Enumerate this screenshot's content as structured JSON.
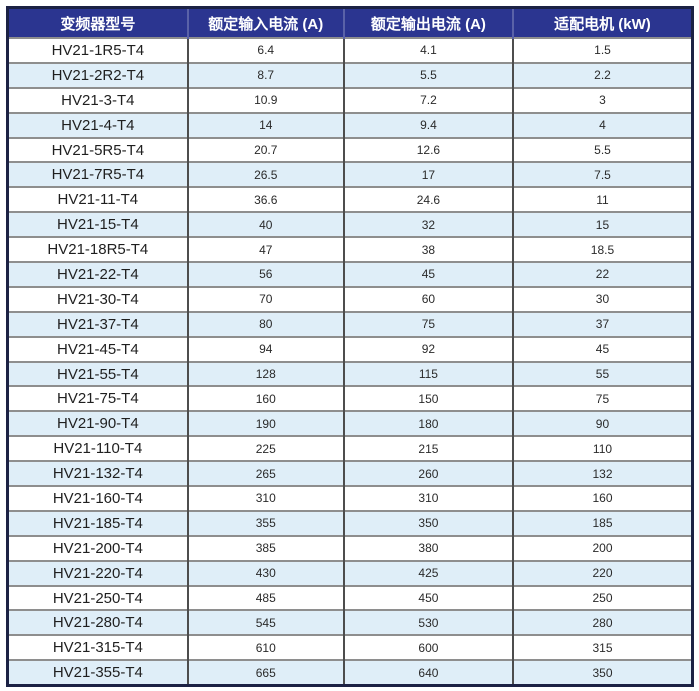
{
  "table": {
    "columns": [
      {
        "label": "变频器型号"
      },
      {
        "label": "额定输入电流 (A)"
      },
      {
        "label": "额定输出电流 (A)"
      },
      {
        "label": "适配电机 (kW)"
      }
    ],
    "rows": [
      {
        "model": "HV21-1R5-T4",
        "input_current": "6.4",
        "output_current": "4.1",
        "motor_kw": "1.5"
      },
      {
        "model": "HV21-2R2-T4",
        "input_current": "8.7",
        "output_current": "5.5",
        "motor_kw": "2.2"
      },
      {
        "model": "HV21-3-T4",
        "input_current": "10.9",
        "output_current": "7.2",
        "motor_kw": "3"
      },
      {
        "model": "HV21-4-T4",
        "input_current": "14",
        "output_current": "9.4",
        "motor_kw": "4"
      },
      {
        "model": "HV21-5R5-T4",
        "input_current": "20.7",
        "output_current": "12.6",
        "motor_kw": "5.5"
      },
      {
        "model": "HV21-7R5-T4",
        "input_current": "26.5",
        "output_current": "17",
        "motor_kw": "7.5"
      },
      {
        "model": "HV21-11-T4",
        "input_current": "36.6",
        "output_current": "24.6",
        "motor_kw": "11"
      },
      {
        "model": "HV21-15-T4",
        "input_current": "40",
        "output_current": "32",
        "motor_kw": "15"
      },
      {
        "model": "HV21-18R5-T4",
        "input_current": "47",
        "output_current": "38",
        "motor_kw": "18.5"
      },
      {
        "model": "HV21-22-T4",
        "input_current": "56",
        "output_current": "45",
        "motor_kw": "22"
      },
      {
        "model": "HV21-30-T4",
        "input_current": "70",
        "output_current": "60",
        "motor_kw": "30"
      },
      {
        "model": "HV21-37-T4",
        "input_current": "80",
        "output_current": "75",
        "motor_kw": "37"
      },
      {
        "model": "HV21-45-T4",
        "input_current": "94",
        "output_current": "92",
        "motor_kw": "45"
      },
      {
        "model": "HV21-55-T4",
        "input_current": "128",
        "output_current": "115",
        "motor_kw": "55"
      },
      {
        "model": "HV21-75-T4",
        "input_current": "160",
        "output_current": "150",
        "motor_kw": "75"
      },
      {
        "model": "HV21-90-T4",
        "input_current": "190",
        "output_current": "180",
        "motor_kw": "90"
      },
      {
        "model": "HV21-110-T4",
        "input_current": "225",
        "output_current": "215",
        "motor_kw": "110"
      },
      {
        "model": "HV21-132-T4",
        "input_current": "265",
        "output_current": "260",
        "motor_kw": "132"
      },
      {
        "model": "HV21-160-T4",
        "input_current": "310",
        "output_current": "310",
        "motor_kw": "160"
      },
      {
        "model": "HV21-185-T4",
        "input_current": "355",
        "output_current": "350",
        "motor_kw": "185"
      },
      {
        "model": "HV21-200-T4",
        "input_current": "385",
        "output_current": "380",
        "motor_kw": "200"
      },
      {
        "model": "HV21-220-T4",
        "input_current": "430",
        "output_current": "425",
        "motor_kw": "220"
      },
      {
        "model": "HV21-250-T4",
        "input_current": "485",
        "output_current": "450",
        "motor_kw": "250"
      },
      {
        "model": "HV21-280-T4",
        "input_current": "545",
        "output_current": "530",
        "motor_kw": "280"
      },
      {
        "model": "HV21-315-T4",
        "input_current": "610",
        "output_current": "600",
        "motor_kw": "315"
      },
      {
        "model": "HV21-355-T4",
        "input_current": "665",
        "output_current": "640",
        "motor_kw": "350"
      }
    ],
    "colors": {
      "header_bg": "#2b3590",
      "header_text": "#ffffff",
      "alt_row_bg": "#dfeef8",
      "row_bg": "#ffffff",
      "outer_border": "#1c2244",
      "h_rule": "#8e8e8e",
      "v_rule": "#4d4d4d"
    }
  }
}
